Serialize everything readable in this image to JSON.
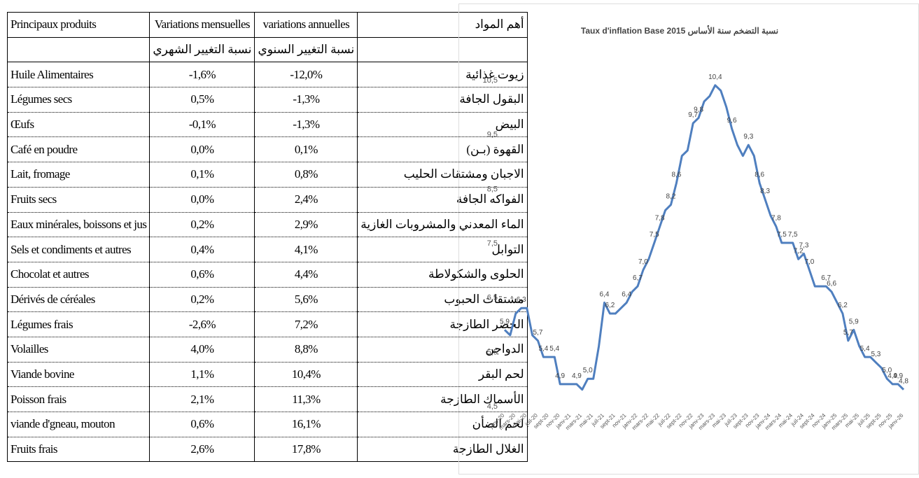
{
  "table": {
    "header": [
      "Principaux produits",
      "Variations mensuelles",
      "variations annuelles",
      "أهم المواد"
    ],
    "subheader": [
      "نسبة التغيير الشهري",
      "نسبة التغيير السنوي"
    ],
    "rows": [
      [
        "Huile Alimentaires",
        "-1,6%",
        "-12,0%",
        "زيوت غذائية"
      ],
      [
        "Légumes secs",
        "0,5%",
        "-1,3%",
        "البقول الجافة"
      ],
      [
        "Œufs",
        "-0,1%",
        "-1,3%",
        "البيض"
      ],
      [
        "Café en poudre",
        "0,0%",
        "0,1%",
        "القهوة (بـن)"
      ],
      [
        "Lait, fromage",
        "0,1%",
        "0,8%",
        "الاجبان ومشتقات الحليب"
      ],
      [
        "Fruits secs",
        "0,0%",
        "2,4%",
        "الفواكه الجافة"
      ],
      [
        "Eaux minérales, boissons et jus",
        "0,2%",
        "2,9%",
        "الماء المعدني والمشروبات الغازية"
      ],
      [
        "Sels et condiments et autres",
        "0,4%",
        "4,1%",
        "التوابل"
      ],
      [
        "Chocolat et autres",
        "0,6%",
        "4,4%",
        "الحلوى والشكولاطة"
      ],
      [
        "Dérivés de céréales",
        "0,2%",
        "5,6%",
        "مشتقات الحبوب"
      ],
      [
        "Légumes frais",
        "-2,6%",
        "7,2%",
        "الخضر الطازجة"
      ],
      [
        "Volailles",
        "4,0%",
        "8,8%",
        "الدواجن"
      ],
      [
        "Viande bovine",
        "1,1%",
        "10,4%",
        "لحم البقر"
      ],
      [
        "Poisson frais",
        "2,1%",
        "11,3%",
        "الأسماك الطازجة"
      ],
      [
        "viande d'gneau, mouton",
        "0,6%",
        "16,1%",
        "لحم الضأن"
      ],
      [
        "Fruits frais",
        "2,6%",
        "17,8%",
        "الغلال الطازجة"
      ]
    ]
  },
  "chart_data": {
    "type": "line",
    "title": "Taux d'inflation Base 2015 نسبة التضخم سنة الأساس",
    "categories": [
      "janv-20",
      null,
      "mars-20",
      null,
      "mai-20",
      null,
      "juil-20",
      null,
      "sept-20",
      null,
      "nov-20",
      null,
      "janv-21",
      null,
      "mars-21",
      null,
      "mai-21",
      null,
      "juil-21",
      null,
      "sept-21",
      null,
      "nov-21",
      null,
      "janv-22",
      null,
      "mars-22",
      null,
      "mai-22",
      null,
      "juil-22",
      null,
      "sept-22",
      null,
      "nov-22",
      null,
      "janv-23",
      null,
      "mars-23",
      null,
      "mai-23",
      null,
      "juil-23",
      null,
      "sept-23",
      null,
      "nov-23",
      null,
      "janv-24",
      null,
      "mars-24",
      null,
      "mai-24",
      null,
      "juil-24",
      null,
      "sept-24",
      null,
      "nov-24",
      null,
      "janv-25",
      null,
      "mars-25",
      null,
      "mai-25",
      null,
      "juil-25",
      null,
      "sept-25",
      null,
      "nov-25",
      null,
      "janv-26"
    ],
    "series": [
      {
        "color": "#4f7fbf",
        "values": [
          5.9,
          5.8,
          6.2,
          6.3,
          6.3,
          5.8,
          5.7,
          5.4,
          5.4,
          5.4,
          4.9,
          4.9,
          4.9,
          4.9,
          4.8,
          5.0,
          5.0,
          5.6,
          6.4,
          6.2,
          6.2,
          6.3,
          6.4,
          6.6,
          6.7,
          7.0,
          7.2,
          7.5,
          7.8,
          8.1,
          8.2,
          8.6,
          9.1,
          9.2,
          9.7,
          9.8,
          10.1,
          10.2,
          10.4,
          10.3,
          10.0,
          9.6,
          9.3,
          9.1,
          9.3,
          9.1,
          8.6,
          8.3,
          8.0,
          7.8,
          7.5,
          7.5,
          7.5,
          7.2,
          7.3,
          7.0,
          6.7,
          6.7,
          6.7,
          6.6,
          6.4,
          6.2,
          5.7,
          5.9,
          5.6,
          5.4,
          5.4,
          5.3,
          5.2,
          5.0,
          4.9,
          4.9,
          4.8
        ],
        "value_labels": [
          "5,9",
          null,
          null,
          "6,3",
          null,
          null,
          "5,7",
          "5,4",
          null,
          "5,4",
          "4,9",
          null,
          null,
          "4,9",
          null,
          "5,0",
          null,
          null,
          "6,4",
          "6,2",
          null,
          null,
          "6,4",
          null,
          "6,7",
          "7,0",
          null,
          "7,5",
          "7,8",
          null,
          "8,2",
          "8,6",
          null,
          null,
          "9,7",
          "9,8",
          null,
          null,
          "10,4",
          null,
          null,
          "9,6",
          null,
          null,
          "9,3",
          null,
          "8,6",
          "8,3",
          null,
          "7,8",
          "7,5",
          null,
          "7,5",
          "7,2",
          "7,3",
          "7,0",
          null,
          null,
          "6,7",
          "6,6",
          null,
          "6,2",
          "5,7",
          "5,9",
          null,
          "5,4",
          null,
          "5,3",
          null,
          "5,0",
          "4,9",
          "4,9",
          "4,8"
        ]
      }
    ],
    "ylim": [
      4.5,
      10.5
    ],
    "yticks": [
      {
        "value": 4.5,
        "label": "4,5"
      },
      {
        "value": 5.5,
        "label": "5,5"
      },
      {
        "value": 6.5,
        "label": "6,5"
      },
      {
        "value": 7.5,
        "label": "7,5"
      },
      {
        "value": 8.5,
        "label": "8,5"
      },
      {
        "value": 9.5,
        "label": "9,5"
      },
      {
        "value": 10.5,
        "label": "10,5"
      }
    ],
    "grid": false
  }
}
